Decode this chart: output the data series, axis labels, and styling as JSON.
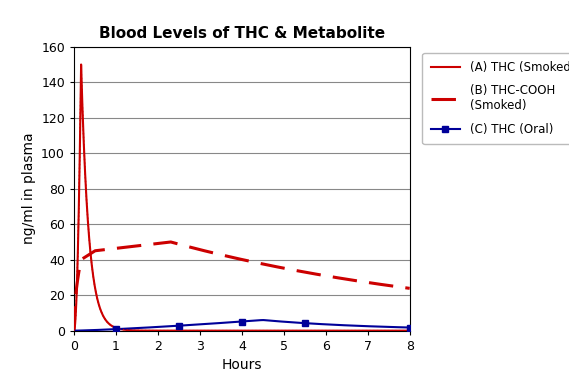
{
  "title": "Blood Levels of THC & Metabolite",
  "xlabel": "Hours",
  "ylabel": "ng/ml in plasma",
  "xlim": [
    0,
    8
  ],
  "ylim": [
    0,
    160
  ],
  "yticks": [
    0,
    20,
    40,
    60,
    80,
    100,
    120,
    140,
    160
  ],
  "xticks": [
    0,
    1,
    2,
    3,
    4,
    5,
    6,
    7,
    8
  ],
  "background_color": "#ffffff",
  "grid_color": "#888888",
  "legend_A": "(A) THC (Smoked)",
  "legend_B": "(B) THC-COOH\n(Smoked)",
  "legend_C": "(C) THC (Oral)",
  "color_A": "#cc0000",
  "color_B": "#cc0000",
  "color_C": "#000099",
  "title_fontsize": 11,
  "axis_fontsize": 10,
  "tick_fontsize": 9
}
